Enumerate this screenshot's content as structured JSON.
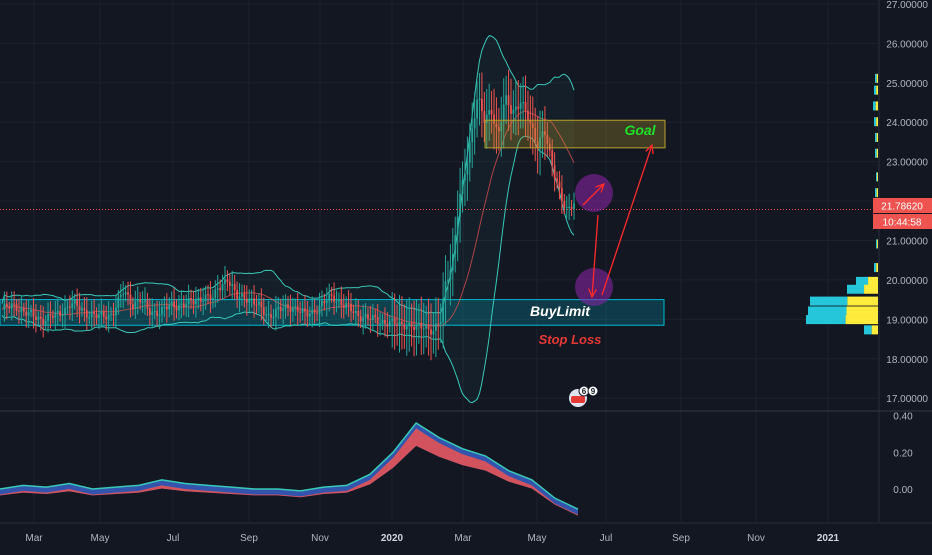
{
  "chart_data": [
    {
      "type": "candlestick",
      "title": "",
      "y_ticks": [
        "17.00000",
        "18.00000",
        "19.00000",
        "20.00000",
        "21.00000",
        "22.00000",
        "23.00000",
        "24.00000",
        "25.00000",
        "26.00000",
        "27.00000"
      ],
      "x_ticks": [
        "Mar",
        "May",
        "Jul",
        "Sep",
        "Nov",
        "2020",
        "Mar",
        "May",
        "Jul",
        "Sep",
        "Nov",
        "2021"
      ],
      "ylim": [
        16.7,
        27.1
      ],
      "last_price": "21.78620",
      "countdown": "10:44:58",
      "annotations": {
        "goal": "Goal",
        "buy_limit": "BuyLimit",
        "stop_loss": "Stop Loss",
        "goal_zone": [
          23.35,
          24.05
        ],
        "buy_zone": [
          18.85,
          19.5
        ]
      },
      "indicators": [
        "bollinger_bands",
        "moving_average",
        "volume_profile"
      ],
      "badge_numbers": [
        "6",
        "9"
      ],
      "colors": {
        "background": "#131722",
        "up": "#26a69a",
        "down": "#ef5350",
        "bands": "#38c9b8",
        "goal_zone": "#b8a02a",
        "buy_zone": "#00bcd4",
        "annotation_arrow": "#ff2a2a",
        "goal_text": "#1fe02a",
        "buy_text": "#ffffff",
        "stop_text": "#e53935",
        "price_tag": "#ef5350"
      }
    },
    {
      "type": "area",
      "title": "",
      "y_ticks": [
        "0.40",
        "0.20",
        "0.00"
      ],
      "ylim": [
        -0.18,
        0.42
      ],
      "series": [
        {
          "values": [
            0.0,
            0.02,
            0.01,
            0.03,
            0.0,
            0.01,
            0.02,
            0.05,
            0.03,
            0.02,
            0.01,
            0.0,
            0.0,
            -0.01,
            0.01,
            0.02,
            0.08,
            0.2,
            0.36,
            0.28,
            0.22,
            0.18,
            0.1,
            0.05,
            -0.05,
            -0.11
          ]
        }
      ]
    }
  ]
}
